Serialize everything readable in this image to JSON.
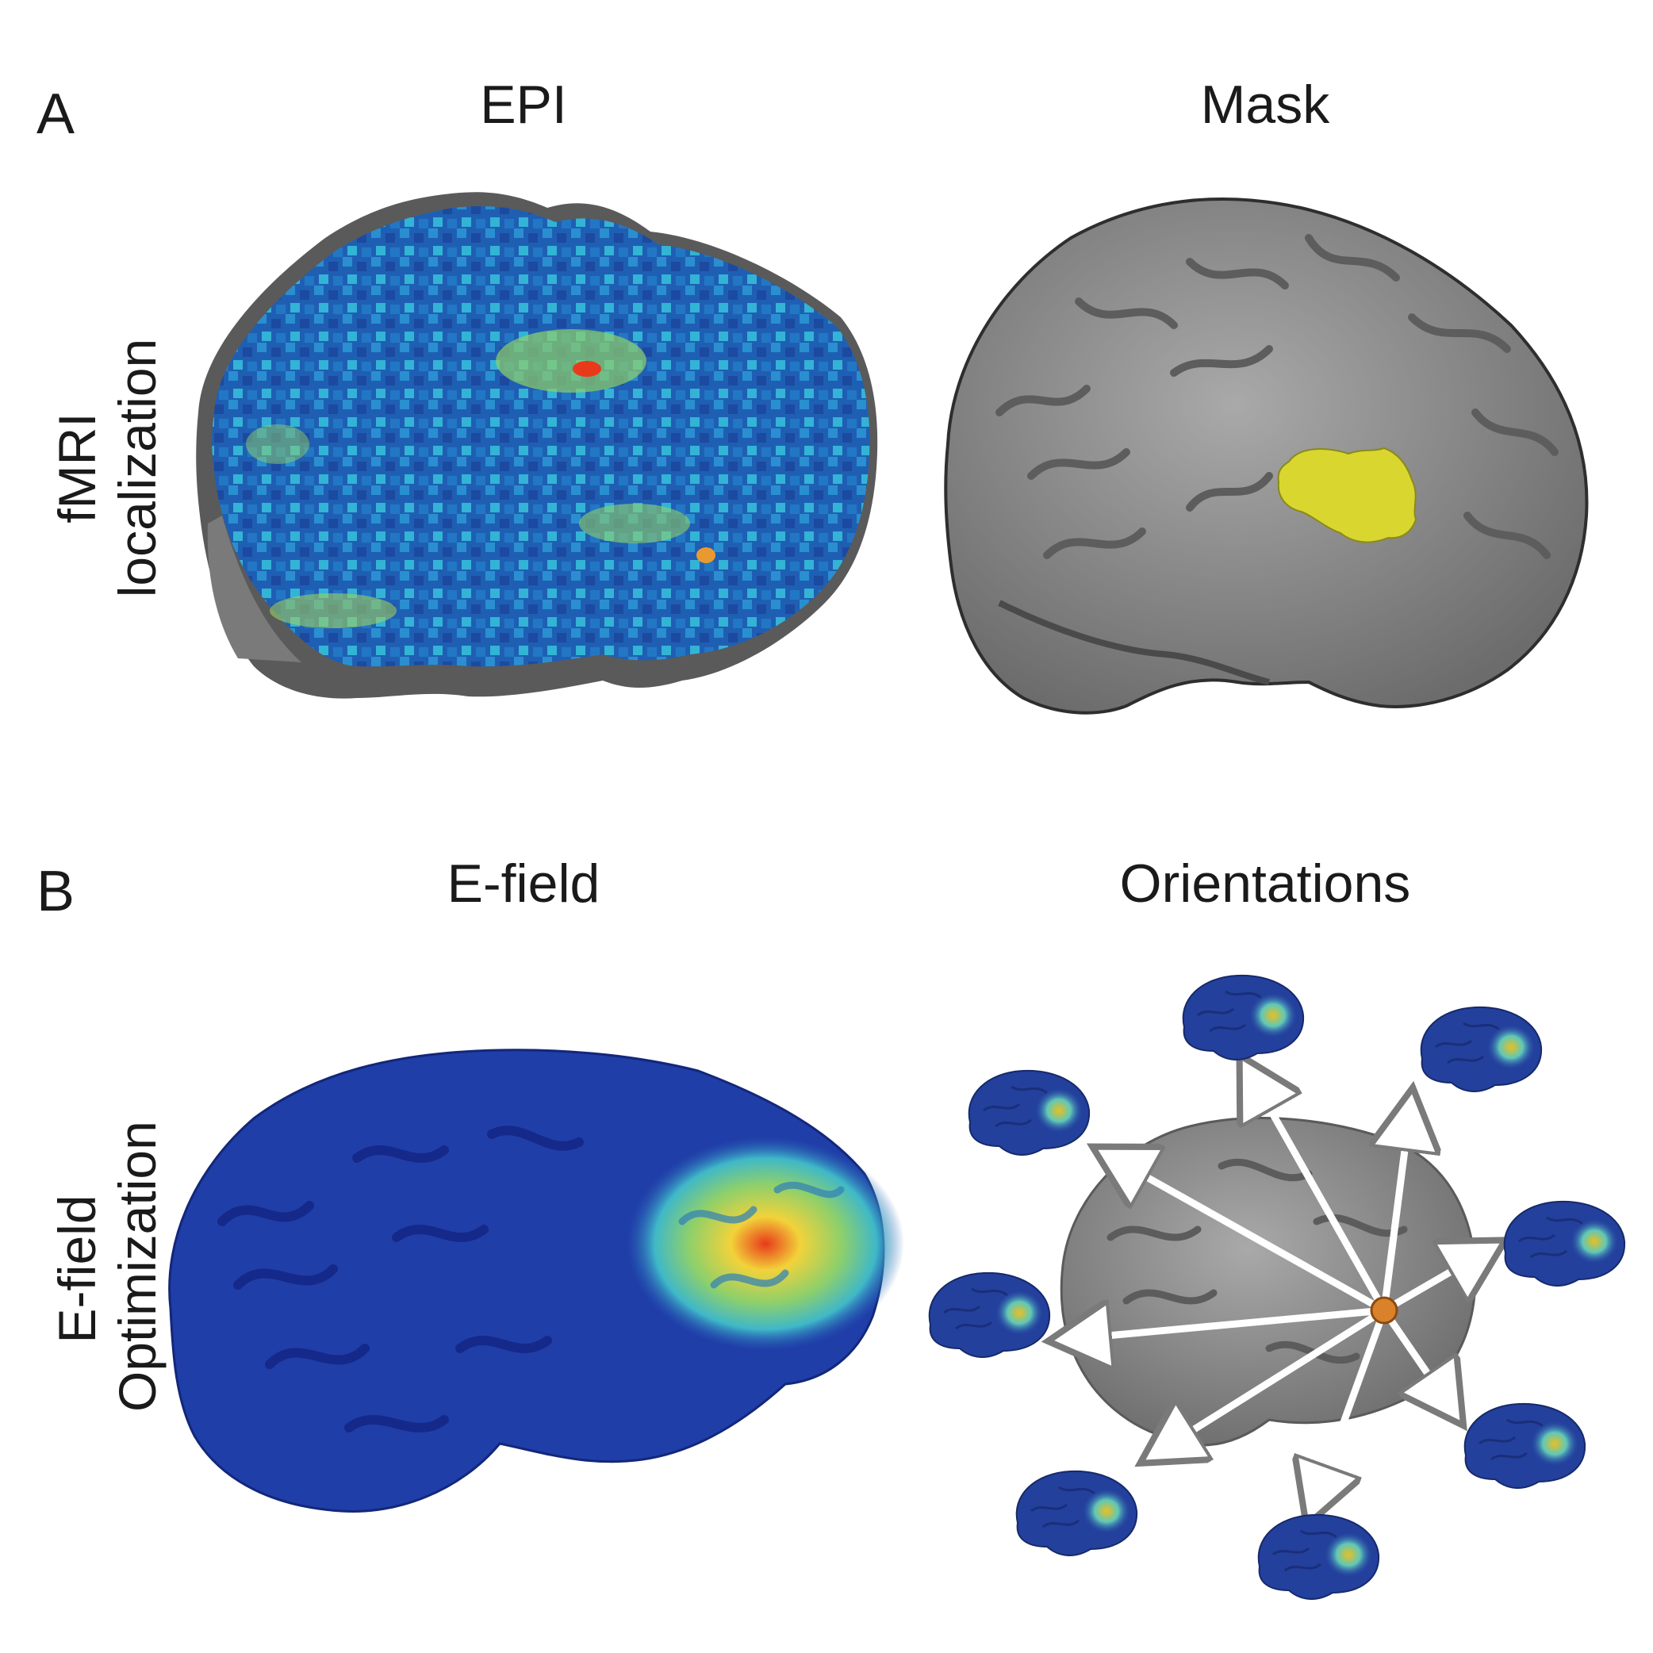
{
  "panels": {
    "a": {
      "letter": "A",
      "row_label_lines": [
        "fMRI",
        "localization"
      ],
      "titles": [
        "EPI",
        "Mask"
      ]
    },
    "b": {
      "letter": "B",
      "row_label_lines": [
        "E-field",
        "Optimization"
      ],
      "titles": [
        "E-field",
        "Orientations"
      ]
    }
  },
  "colors": {
    "brain_gray": "#8a8a8a",
    "mask_yellow": "#d9d630",
    "efield_blue": "#1f3ea8",
    "efield_hot": "#e83a1a",
    "center_dot": "#d9822b"
  }
}
